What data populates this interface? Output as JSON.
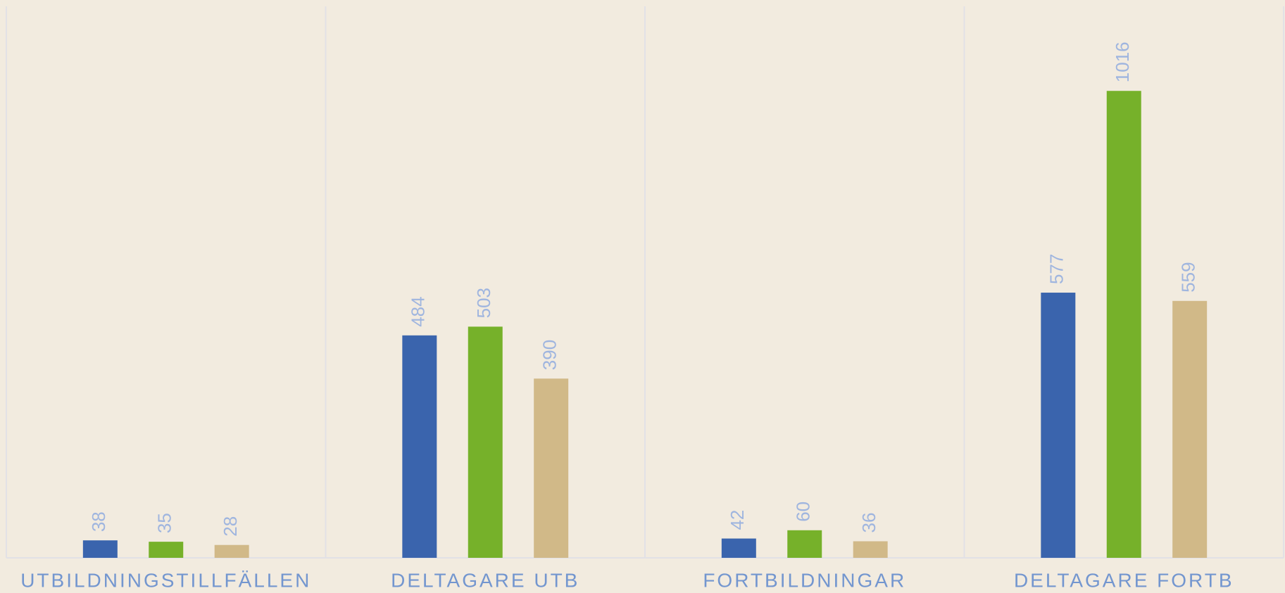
{
  "chart_data": {
    "type": "bar",
    "categories": [
      "UTBILDNINGSTILLFÄLLEN",
      "DELTAGARE UTB",
      "FORTBILDNINGAR",
      "DELTAGARE FORTB"
    ],
    "series": [
      {
        "color": "#3a64ad",
        "values": [
          38,
          484,
          42,
          577
        ]
      },
      {
        "color": "#76b12a",
        "values": [
          35,
          503,
          60,
          1016
        ]
      },
      {
        "color": "#d1b988",
        "values": [
          28,
          390,
          36,
          559
        ]
      }
    ],
    "ylim": [
      0,
      1200
    ]
  }
}
